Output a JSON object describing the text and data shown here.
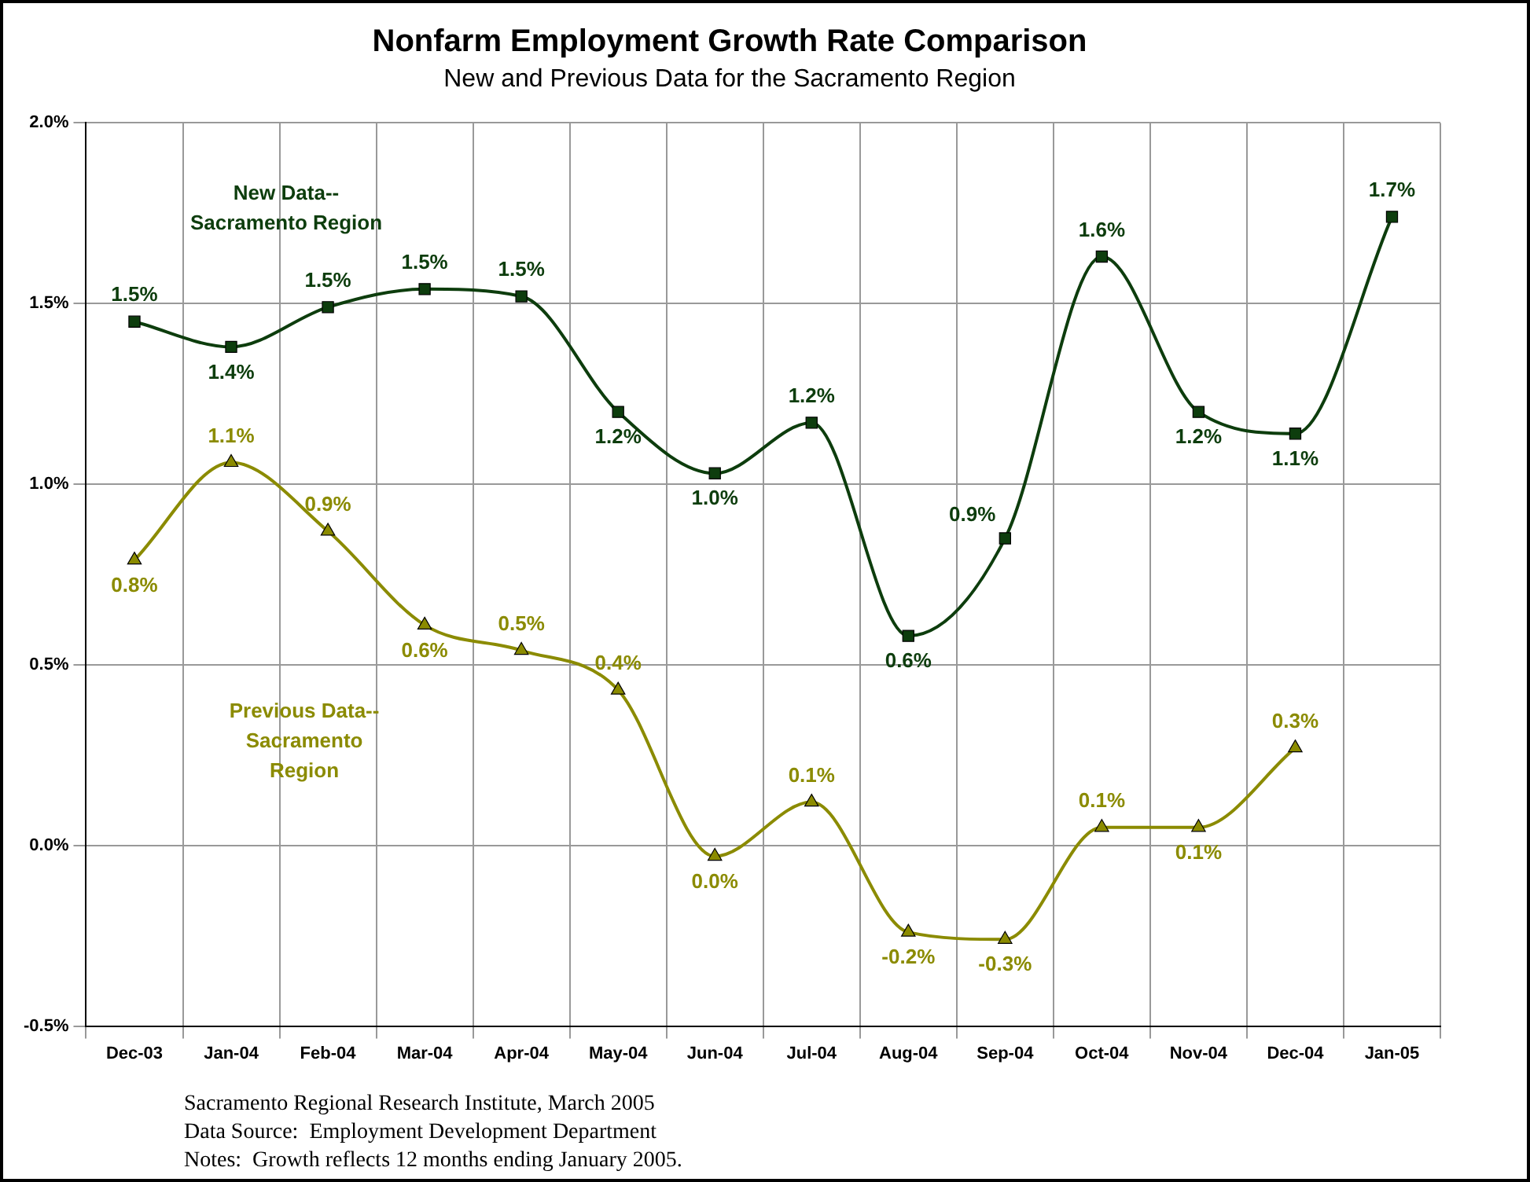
{
  "chart_data": {
    "type": "line",
    "title": "Nonfarm Employment Growth Rate Comparison",
    "subtitle": "New and Previous Data for the Sacramento Region",
    "categories": [
      "Dec-03",
      "Jan-04",
      "Feb-04",
      "Mar-04",
      "Apr-04",
      "May-04",
      "Jun-04",
      "Jul-04",
      "Aug-04",
      "Sep-04",
      "Oct-04",
      "Nov-04",
      "Dec-04",
      "Jan-05"
    ],
    "series": [
      {
        "name": "New Data--Sacramento Region",
        "color": "#0d3d0d",
        "marker": "square",
        "values": [
          1.45,
          1.38,
          1.49,
          1.54,
          1.52,
          1.2,
          1.03,
          1.17,
          0.58,
          0.85,
          1.63,
          1.2,
          1.14,
          1.74
        ],
        "value_labels": [
          "1.5%",
          "1.4%",
          "1.5%",
          "1.5%",
          "1.5%",
          "1.2%",
          "1.0%",
          "1.2%",
          "0.6%",
          "0.9%",
          "1.6%",
          "1.2%",
          "1.1%",
          "1.7%"
        ]
      },
      {
        "name": "Previous Data--Sacramento Region",
        "color": "#8b8b00",
        "marker": "triangle",
        "values": [
          0.79,
          1.06,
          0.87,
          0.61,
          0.54,
          0.43,
          -0.03,
          0.12,
          -0.24,
          -0.26,
          0.05,
          0.05,
          0.27,
          null
        ],
        "value_labels": [
          "0.8%",
          "1.1%",
          "0.9%",
          "0.6%",
          "0.5%",
          "0.4%",
          "0.0%",
          "0.1%",
          "-0.2%",
          "-0.3%",
          "0.1%",
          "0.1%",
          "0.3%",
          null
        ]
      }
    ],
    "ylim": [
      -0.5,
      2.0
    ],
    "yticks": [
      {
        "value": -0.5,
        "label": "-0.5%"
      },
      {
        "value": 0,
        "label": "0.0%"
      },
      {
        "value": 0.5,
        "label": "0.5%"
      },
      {
        "value": 1,
        "label": "1.0%"
      },
      {
        "value": 1.5,
        "label": "1.5%"
      },
      {
        "value": 2,
        "label": "2.0%"
      }
    ],
    "grid": true,
    "legend": false,
    "annotations": [
      "Sacramento Regional Research Institute, March 2005",
      "Data Source:  Employment Development Department",
      "Notes:  Growth reflects 12 months ending January 2005."
    ]
  }
}
